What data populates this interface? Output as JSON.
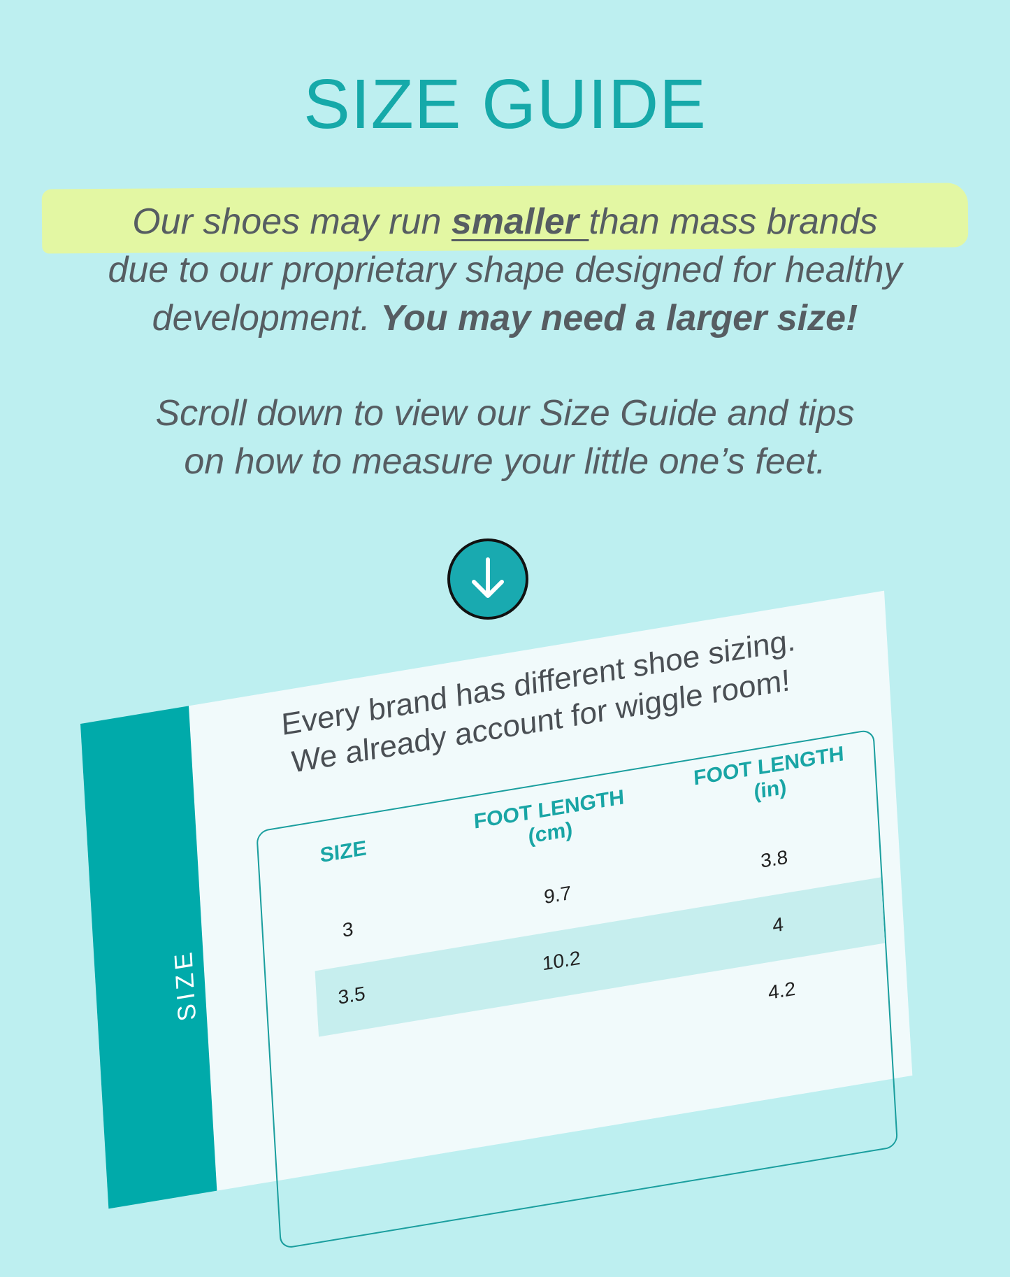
{
  "title": "SIZE GUIDE",
  "intro": {
    "highlight_pre": "Our shoes may run ",
    "highlight_bold": "smaller ",
    "highlight_post": "than mass brands",
    "line2": "due to our proprietary shape designed for healthy",
    "line3_pre": "development. ",
    "line3_bold": "You may need a larger size!"
  },
  "scroll_note": {
    "line1": "Scroll down to view our Size Guide and tips",
    "line2": "on how to measure your little one’s feet."
  },
  "arrow_icon": "arrow-down-circle-icon",
  "colors": {
    "background": "#bdeff0",
    "accent": "#16a9a9",
    "highlight": "#e3f7a3",
    "text": "#565d62"
  },
  "card": {
    "side_label": "SIZE",
    "note_line1": "Every brand has different shoe sizing.",
    "note_line2": "We already account for wiggle room!",
    "headers": [
      {
        "line1": "SIZE",
        "line2": ""
      },
      {
        "line1": "FOOT LENGTH",
        "line2": "(cm)"
      },
      {
        "line1": "FOOT LENGTH",
        "line2": "(in)"
      }
    ],
    "rows": [
      [
        "3",
        "9.7",
        "3.8"
      ],
      [
        "3.5",
        "10.2",
        "4"
      ],
      [
        "",
        "",
        "4.2"
      ]
    ]
  }
}
